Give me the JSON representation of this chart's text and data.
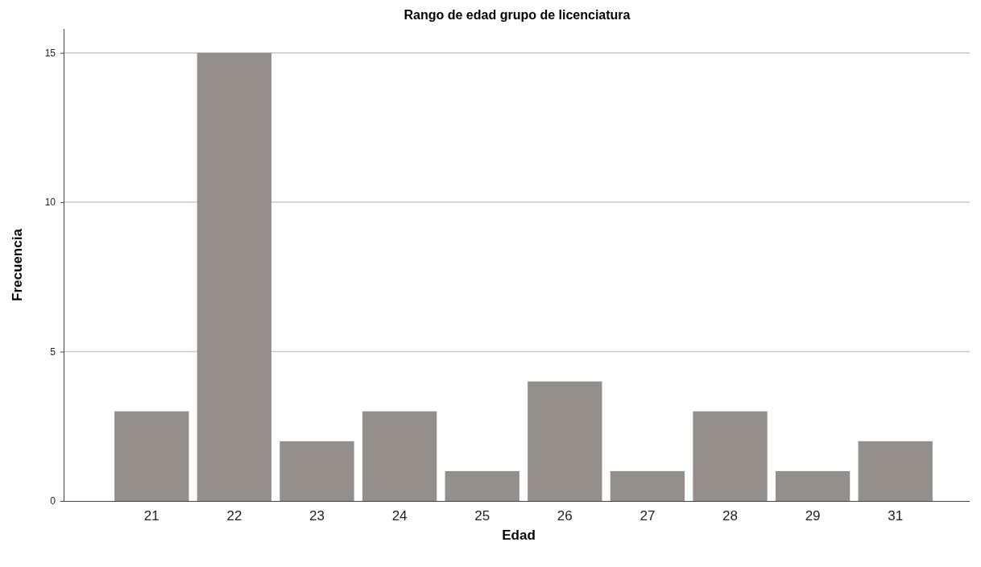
{
  "chart_data": {
    "type": "bar",
    "title": "Rango de edad grupo de licenciatura",
    "xlabel": "Edad",
    "ylabel": "Frecuencia",
    "categories": [
      "21",
      "22",
      "23",
      "24",
      "25",
      "26",
      "27",
      "28",
      "29",
      "31"
    ],
    "values": [
      3,
      15,
      2,
      3,
      1,
      4,
      1,
      3,
      1,
      2
    ],
    "color": "#958f8c",
    "ylim": [
      0,
      15.8
    ],
    "yticks": [
      0,
      5,
      10,
      15
    ],
    "grid": "y"
  }
}
